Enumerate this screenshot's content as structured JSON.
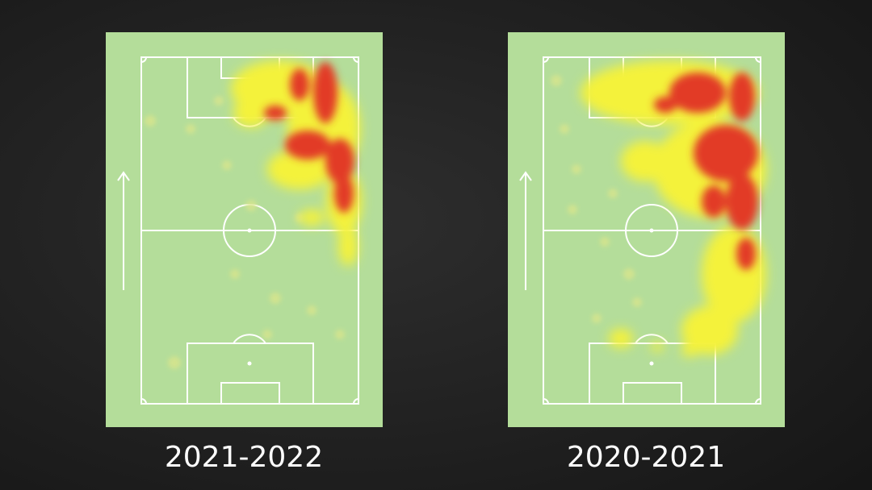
{
  "panels": [
    {
      "label": "2021-2022"
    },
    {
      "label": "2020-2021"
    }
  ]
}
